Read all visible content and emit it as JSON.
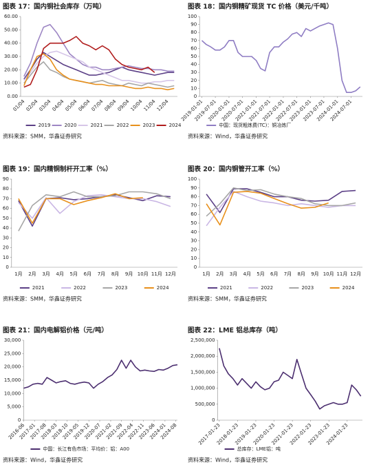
{
  "chart_data": [
    {
      "type": "line",
      "title": "图表 17：国内铜社会库存（万吨）",
      "source": "资料来源：SMM，华鑫证券研究",
      "categories": [
        "01/04",
        null,
        "02/04",
        null,
        "03/04",
        null,
        "04/04",
        null,
        "05/04",
        null,
        "06/04",
        null,
        "07/04",
        null,
        "08/04",
        null,
        "09/04",
        null,
        "10/04",
        null,
        "11/04",
        null,
        "12/04",
        null
      ],
      "ylim": [
        0,
        60
      ],
      "yticks": [
        {
          "value": 0,
          "label": "0.00"
        },
        {
          "value": 10,
          "label": "10.00"
        },
        {
          "value": 20,
          "label": "20.00"
        },
        {
          "value": 30,
          "label": "30.00"
        },
        {
          "value": 40,
          "label": "40.00"
        },
        {
          "value": 50,
          "label": "50.00"
        },
        {
          "value": 60,
          "label": "60.00"
        }
      ],
      "grid": false,
      "legend": "bottom",
      "series": [
        {
          "name": "2019",
          "color": "#5b3f86",
          "values": [
            13,
            20,
            28,
            33,
            30,
            27,
            24,
            22,
            20,
            18,
            16,
            16,
            17,
            18,
            20,
            22,
            20,
            19,
            18,
            17,
            16,
            17,
            18,
            18
          ]
        },
        {
          "name": "2020",
          "color": "#9d86c4",
          "values": [
            15,
            25,
            40,
            52,
            54,
            48,
            40,
            32,
            28,
            24,
            22,
            22,
            20,
            20,
            21,
            22,
            23,
            22,
            21,
            21,
            20,
            20,
            19,
            19
          ]
        },
        {
          "name": "2021",
          "color": "#d6c6e8",
          "values": [
            12,
            18,
            25,
            30,
            33,
            34,
            32,
            30,
            28,
            26,
            22,
            20,
            18,
            16,
            14,
            12,
            12,
            11,
            10,
            10,
            11,
            11,
            12,
            12
          ]
        },
        {
          "name": "2022",
          "color": "#a6a6a6",
          "values": [
            10,
            16,
            22,
            26,
            20,
            18,
            15,
            13,
            12,
            11,
            10,
            11,
            12,
            10,
            9,
            8,
            10,
            9,
            8,
            10,
            9,
            8,
            7,
            8
          ]
        },
        {
          "name": "2023",
          "color": "#e8901b",
          "values": [
            8,
            20,
            30,
            32,
            28,
            20,
            16,
            13,
            12,
            11,
            10,
            9,
            9,
            8,
            8,
            8,
            7,
            6,
            6,
            7,
            6,
            6,
            5,
            6
          ]
        },
        {
          "name": "2024",
          "color": "#b01c1c",
          "values": [
            7,
            9,
            20,
            36,
            40,
            40,
            40,
            42,
            45,
            40,
            38,
            35,
            38,
            35,
            28,
            24,
            22,
            21,
            20,
            22,
            18,
            null,
            null,
            null
          ]
        }
      ]
    },
    {
      "type": "line",
      "title": "图表 18：国内铜精矿现货 TC 价格（美元/千吨）",
      "source": "资料来源：Wind，华鑫证券研究",
      "x": [
        "2019-01-01",
        "2019-03-01",
        "2019-05-01",
        "2019-07-01",
        "2019-09-01",
        "2019-11-01",
        "2020-01-01",
        "2020-03-01",
        "2020-05-01",
        "2020-07-01",
        "2020-09-01",
        "2020-11-01",
        "2021-01-01",
        "2021-03-01",
        "2021-05-01",
        "2021-07-01",
        "2021-09-01",
        "2021-11-01",
        "2022-01-01",
        "2022-03-01",
        "2022-05-01",
        "2022-07-01",
        "2022-09-01",
        "2022-11-01",
        "2023-01-01",
        "2023-03-01",
        "2023-05-01",
        "2023-07-01",
        "2023-09-01",
        "2023-11-01",
        "2024-01-01",
        "2024-03-01",
        "2024-05-01",
        "2024-07-01",
        "2024-09-01",
        "2024-11-01"
      ],
      "xlim": [
        "2018-12-01",
        "2024-12-01"
      ],
      "xticks": [
        "2019-01-01",
        "2019-07-01",
        "2020-01-01",
        "2020-07-01",
        "2021-01-01",
        "2021-07-01",
        "2022-01-01",
        "2022-07-01",
        "2023-01-01",
        "2023-07-01",
        "2024-01-01",
        "2024-07-01"
      ],
      "ylim": [
        0,
        100
      ],
      "yticks": [
        0,
        10,
        20,
        30,
        40,
        50,
        60,
        70,
        80,
        90,
        100
      ],
      "grid": false,
      "legend": "bottom",
      "series": [
        {
          "name": "中国：现货粗炼费(TC)：铜冶炼厂",
          "color": "#8e7cc3",
          "values": [
            70,
            65,
            62,
            58,
            58,
            62,
            70,
            70,
            55,
            50,
            50,
            50,
            45,
            35,
            32,
            55,
            62,
            62,
            68,
            72,
            78,
            80,
            75,
            85,
            82,
            85,
            88,
            90,
            92,
            90,
            60,
            20,
            5,
            5,
            7,
            12
          ]
        }
      ]
    },
    {
      "type": "line",
      "title": "图表 19：国内精铜制杆开工率（%）",
      "source": "资料来源：SMM，华鑫证券研究",
      "categories": [
        "1月",
        "2月",
        "3月",
        "4月",
        "5月",
        "6月",
        "7月",
        "8月",
        "9月",
        "10月",
        "11月",
        "12月"
      ],
      "ylim": [
        0,
        90
      ],
      "yticks": [
        0,
        10,
        20,
        30,
        40,
        50,
        60,
        70,
        80,
        90
      ],
      "grid": false,
      "legend": "bottom",
      "series": [
        {
          "name": "2021",
          "color": "#5b3f86",
          "values": [
            68,
            42,
            70,
            71,
            69,
            70,
            72,
            74,
            71,
            68,
            73,
            72
          ]
        },
        {
          "name": "2022",
          "color": "#c9b6e4",
          "values": [
            66,
            50,
            71,
            55,
            67,
            73,
            74,
            72,
            70,
            70,
            67,
            62
          ]
        },
        {
          "name": "2023",
          "color": "#a6a6a6",
          "values": [
            37,
            63,
            74,
            72,
            77,
            72,
            72,
            73,
            77,
            77,
            75,
            70
          ]
        },
        {
          "name": "2024",
          "color": "#e8901b",
          "values": [
            70,
            45,
            70,
            70,
            64,
            68,
            71,
            75,
            70,
            71,
            null,
            null
          ]
        }
      ]
    },
    {
      "type": "line",
      "title": "图表 20：国内铜管开工率（%）",
      "source": "资料来源：SMM，华鑫证券研究",
      "categories": [
        "1月",
        "2月",
        "3月",
        "4月",
        "5月",
        "6月",
        "7月",
        "8月",
        "9月",
        "10月",
        "11月",
        "12月"
      ],
      "ylim": [
        0,
        100
      ],
      "yticks": [
        0,
        10,
        20,
        30,
        40,
        50,
        60,
        70,
        80,
        90,
        100
      ],
      "grid": false,
      "legend": "bottom",
      "series": [
        {
          "name": "2021",
          "color": "#5b3f86",
          "values": [
            83,
            62,
            89,
            89,
            85,
            80,
            80,
            76,
            75,
            76,
            86,
            87
          ]
        },
        {
          "name": "2022",
          "color": "#c9b6e4",
          "values": [
            47,
            68,
            86,
            80,
            75,
            73,
            70,
            72,
            70,
            68,
            70,
            70
          ]
        },
        {
          "name": "2023",
          "color": "#a6a6a6",
          "values": [
            58,
            72,
            90,
            87,
            88,
            83,
            80,
            78,
            72,
            70,
            70,
            73
          ]
        },
        {
          "name": "2024",
          "color": "#e8901b",
          "values": [
            72,
            48,
            85,
            86,
            84,
            78,
            72,
            67,
            68,
            73,
            null,
            null
          ]
        }
      ]
    },
    {
      "type": "line",
      "title": "图表 21：国内电解铝价格（元/吨）",
      "source": "资料来源：Wind，华鑫证券研究",
      "x": [
        "2016-06",
        "2016-09",
        "2016-12",
        "2017-03",
        "2017-06",
        "2017-09",
        "2017-12",
        "2018-03",
        "2018-06",
        "2018-09",
        "2018-12",
        "2019-03",
        "2019-06",
        "2019-09",
        "2019-12",
        "2020-03",
        "2020-06",
        "2020-09",
        "2020-12",
        "2021-03",
        "2021-06",
        "2021-09",
        "2021-12",
        "2022-03",
        "2022-06",
        "2022-09",
        "2022-12",
        "2023-03",
        "2023-06",
        "2023-09",
        "2023-12",
        "2024-03",
        "2024-06",
        "2024-09"
      ],
      "xlim": [
        "2016-06",
        "2024-09"
      ],
      "xticks": [
        "2016-06",
        "2017-01",
        "2017-08",
        "2018-03",
        "2018-10",
        "2019-05",
        "2019-12",
        "2020-07",
        "2021-02",
        "2021-09",
        "2022-04",
        "2022-11",
        "2023-06",
        "2024-01",
        "2024-08"
      ],
      "ylim": [
        0,
        30000
      ],
      "yticks": [
        0,
        {
          "value": 5000,
          "label": "5,000"
        },
        {
          "value": 10000,
          "label": "10,000"
        },
        {
          "value": 15000,
          "label": "15,000"
        },
        {
          "value": 20000,
          "label": "20,000"
        },
        {
          "value": 25000,
          "label": "25,000"
        },
        {
          "value": 30000,
          "label": "30,000"
        }
      ],
      "grid": false,
      "legend": "bottom",
      "series": [
        {
          "name": "中国：长江有色市场：平均价：铝：A00",
          "color": "#4b2e6f",
          "values": [
            12000,
            12500,
            13500,
            13800,
            13500,
            16000,
            15000,
            14000,
            14500,
            14800,
            13800,
            13500,
            14000,
            14300,
            14000,
            12000,
            13500,
            14500,
            16000,
            17000,
            19000,
            22500,
            19500,
            22500,
            20000,
            18500,
            18800,
            18500,
            18300,
            19000,
            18800,
            19500,
            20500,
            20800
          ]
        }
      ]
    },
    {
      "type": "line",
      "title": "图表 22：LME 铝总库存（吨）",
      "source": "资料来源：Wind，华鑫证券研究",
      "x": [
        "2017-01-23",
        "2017-04-23",
        "2017-07-23",
        "2017-10-23",
        "2018-01-23",
        "2018-04-23",
        "2018-07-23",
        "2018-10-23",
        "2019-01-23",
        "2019-04-23",
        "2019-07-23",
        "2019-10-23",
        "2020-01-23",
        "2020-04-23",
        "2020-07-23",
        "2020-10-23",
        "2021-01-23",
        "2021-04-23",
        "2021-07-23",
        "2021-10-23",
        "2022-01-23",
        "2022-04-23",
        "2022-07-23",
        "2022-10-23",
        "2023-01-23",
        "2023-04-23",
        "2023-07-23",
        "2023-10-23",
        "2024-01-23",
        "2024-04-23",
        "2024-07-23",
        "2024-10-23"
      ],
      "xlim": [
        "2016-12-23",
        "2024-11-23"
      ],
      "xticks": [
        "2017-01-23",
        "2018-01-23",
        "2019-01-23",
        "2020-01-23",
        "2021-01-23",
        "2022-01-23",
        "2023-01-23",
        "2024-01-23"
      ],
      "ylim": [
        0,
        2500000
      ],
      "yticks": [
        0,
        {
          "value": 500000,
          "label": "500,000"
        },
        {
          "value": 1000000,
          "label": "1,000,000"
        },
        {
          "value": 1500000,
          "label": "1,500,000"
        },
        {
          "value": 2000000,
          "label": "2,000,000"
        },
        {
          "value": 2500000,
          "label": "2,500,000"
        }
      ],
      "grid": false,
      "legend": "bottom",
      "series": [
        {
          "name": "总库存：LME铝：吨",
          "color": "#4b2e6f",
          "values": [
            2250000,
            1700000,
            1450000,
            1300000,
            1100000,
            1300000,
            1150000,
            1000000,
            1200000,
            1050000,
            950000,
            1000000,
            1200000,
            1250000,
            1500000,
            1400000,
            1300000,
            1900000,
            1450000,
            1000000,
            800000,
            600000,
            350000,
            450000,
            500000,
            550000,
            500000,
            500000,
            550000,
            1100000,
            950000,
            750000
          ]
        }
      ]
    }
  ]
}
